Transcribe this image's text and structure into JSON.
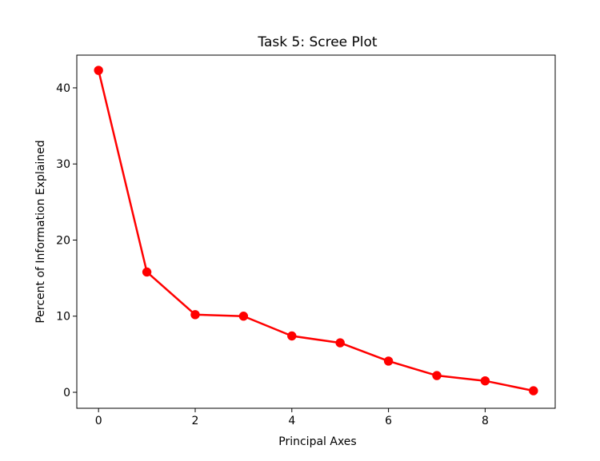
{
  "chart_data": {
    "type": "line",
    "title": "Task 5: Scree Plot",
    "xlabel": "Principal Axes",
    "ylabel": "Percent of Information Explained",
    "xlim": [
      -0.45,
      9.45
    ],
    "ylim": [
      -2.1,
      44.3
    ],
    "xticks": [
      0,
      2,
      4,
      6,
      8
    ],
    "yticks": [
      0,
      10,
      20,
      30,
      40
    ],
    "grid": false,
    "series": [
      {
        "color": "#ff0000",
        "marker": "circle",
        "x": [
          0,
          1,
          2,
          3,
          4,
          5,
          6,
          7,
          8,
          9
        ],
        "y": [
          42.3,
          15.8,
          10.2,
          10.0,
          7.4,
          6.5,
          4.1,
          2.2,
          1.5,
          0.2
        ]
      }
    ]
  }
}
